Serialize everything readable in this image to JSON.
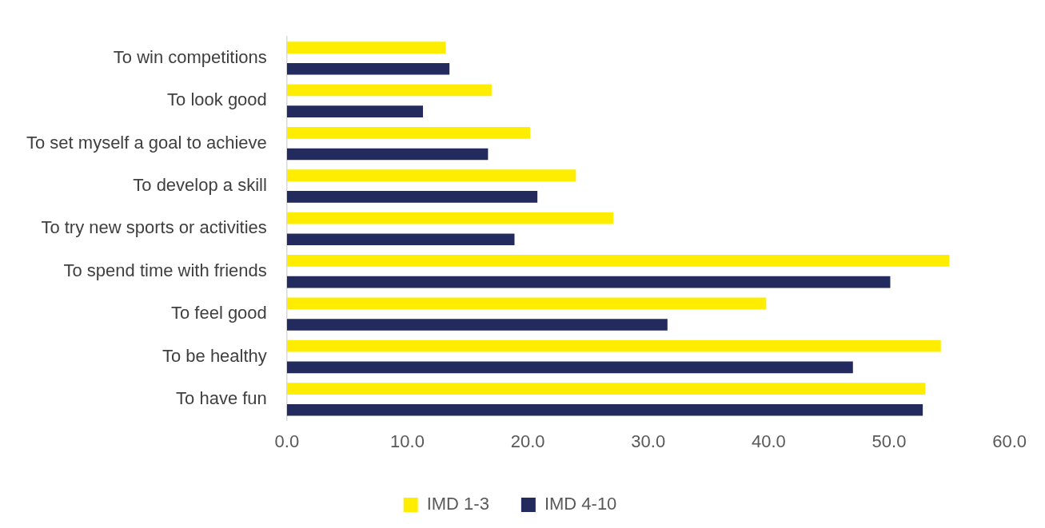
{
  "chart_data": {
    "type": "bar",
    "orientation": "horizontal",
    "categories": [
      "To win competitions",
      "To look good",
      "To set myself a goal to achieve",
      "To develop a skill",
      "To try new sports or activities",
      "To spend time with friends",
      "To feel good",
      "To be healthy",
      "To have fun"
    ],
    "series": [
      {
        "name": "IMD 1-3",
        "color": "#ffed00",
        "values": [
          13.2,
          17.0,
          20.2,
          24.0,
          27.1,
          55.0,
          39.8,
          54.3,
          53.0
        ]
      },
      {
        "name": "IMD 4-10",
        "color": "#222a5e",
        "values": [
          13.5,
          11.3,
          16.7,
          20.8,
          18.9,
          50.1,
          31.6,
          47.0,
          52.8
        ]
      }
    ],
    "xlim": [
      0,
      60
    ],
    "xticks": [
      {
        "value": 0,
        "label": "0.0"
      },
      {
        "value": 10,
        "label": "10.0"
      },
      {
        "value": 20,
        "label": "20.0"
      },
      {
        "value": 30,
        "label": "30.0"
      },
      {
        "value": 40,
        "label": "40.0"
      },
      {
        "value": 50,
        "label": "50.0"
      },
      {
        "value": 60,
        "label": "60.0"
      }
    ],
    "grid": false,
    "legend": "bottom"
  }
}
